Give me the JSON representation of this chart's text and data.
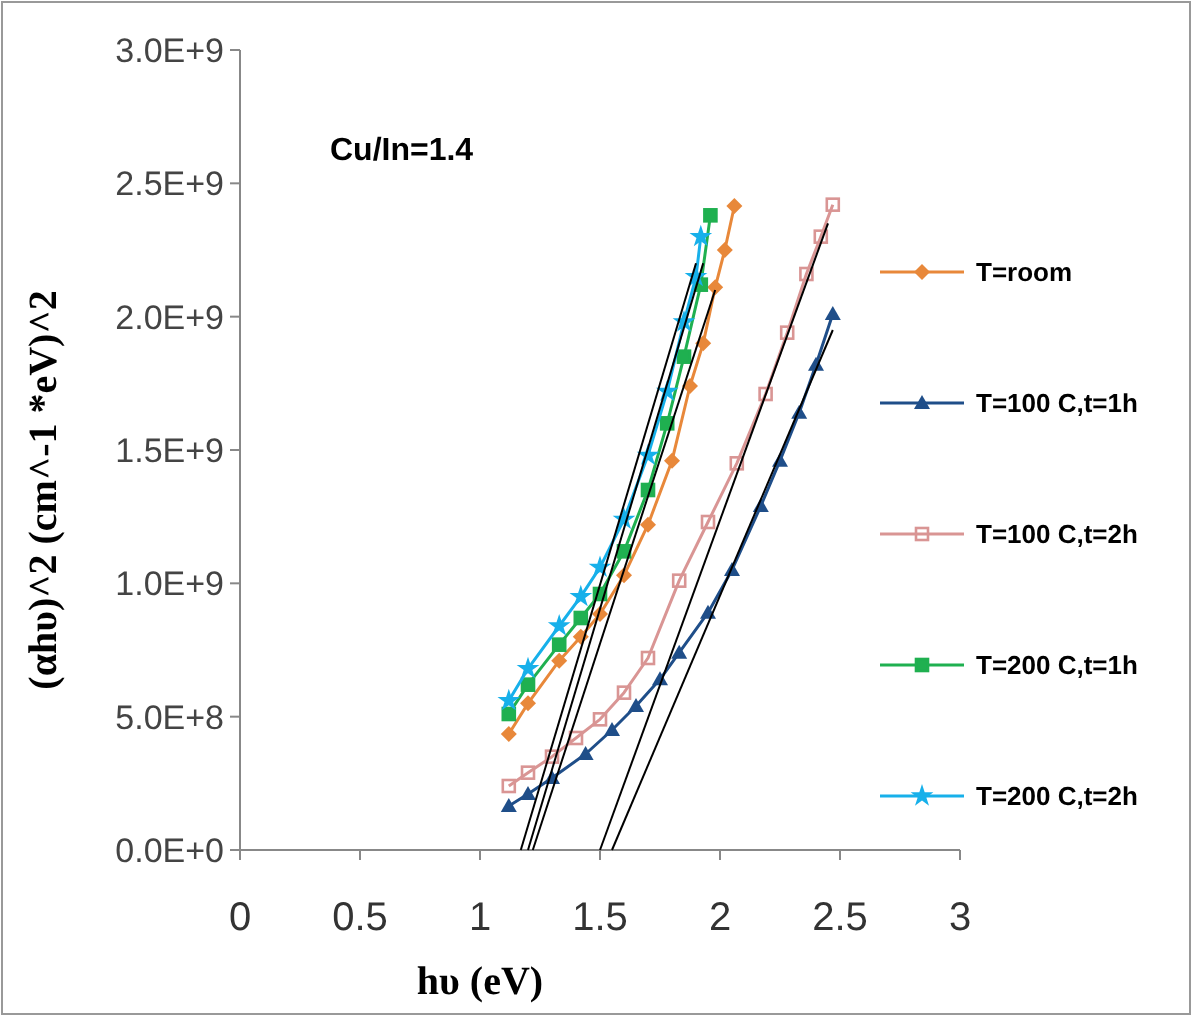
{
  "chart_data": {
    "type": "line",
    "xlabel": "hυ (eV)",
    "ylabel": "(αhυ)^2 (cm^-1 *eV)^2",
    "annotations": [
      "Cu/In=1.4"
    ],
    "xlim": [
      0,
      3
    ],
    "xticks": [
      0,
      0.5,
      1,
      1.5,
      2,
      2.5,
      3
    ],
    "ylim": [
      0,
      3000000000
    ],
    "yticks": [
      {
        "value": 0,
        "label": "0.0E+0"
      },
      {
        "value": 500000000,
        "label": "5.0E+8"
      },
      {
        "value": 1000000000,
        "label": "1.0E+9"
      },
      {
        "value": 1500000000,
        "label": "1.5E+9"
      },
      {
        "value": 2000000000,
        "label": "2.0E+9"
      },
      {
        "value": 2500000000,
        "label": "2.5E+9"
      },
      {
        "value": 3000000000,
        "label": "3.0E+9"
      }
    ],
    "grid": false,
    "legend": "right",
    "series": [
      {
        "name": "T=room",
        "color": "#e8883a",
        "marker": "diamond",
        "x": [
          1.12,
          1.2,
          1.33,
          1.42,
          1.5,
          1.6,
          1.7,
          1.8,
          1.875,
          1.93,
          1.98,
          2.02,
          2.06
        ],
        "values": [
          435000000,
          550000000,
          710000000,
          800000000,
          885000000,
          1030000000,
          1220000000,
          1460000000,
          1740000000,
          1900000000,
          2110000000,
          2250000000,
          2415000000
        ]
      },
      {
        "name": "T=100 C,t=1h",
        "color": "#1f4e89",
        "marker": "triangle",
        "x": [
          1.12,
          1.2,
          1.3,
          1.44,
          1.55,
          1.65,
          1.75,
          1.83,
          1.95,
          2.05,
          2.17,
          2.25,
          2.33,
          2.4,
          2.47
        ],
        "values": [
          165000000,
          210000000,
          270000000,
          360000000,
          450000000,
          540000000,
          640000000,
          740000000,
          890000000,
          1050000000,
          1290000000,
          1460000000,
          1640000000,
          1820000000,
          2010000000
        ]
      },
      {
        "name": "T=100 C,t=2h",
        "color": "#d99594",
        "marker": "square",
        "x": [
          1.12,
          1.2,
          1.3,
          1.4,
          1.5,
          1.6,
          1.7,
          1.83,
          1.95,
          2.07,
          2.19,
          2.28,
          2.36,
          2.42,
          2.47
        ],
        "values": [
          240000000,
          290000000,
          350000000,
          420000000,
          490000000,
          590000000,
          720000000,
          1010000000,
          1230000000,
          1450000000,
          1710000000,
          1940000000,
          2160000000,
          2300000000,
          2420000000
        ]
      },
      {
        "name": "T=200 C,t=1h",
        "color": "#1fb050",
        "marker": "square",
        "x": [
          1.12,
          1.2,
          1.33,
          1.42,
          1.5,
          1.6,
          1.7,
          1.78,
          1.85,
          1.92,
          1.96
        ],
        "values": [
          510000000,
          620000000,
          770000000,
          870000000,
          960000000,
          1120000000,
          1350000000,
          1600000000,
          1850000000,
          2120000000,
          2380000000
        ]
      },
      {
        "name": "T=200 C,t=2h",
        "color": "#17b0ea",
        "marker": "star",
        "x": [
          1.12,
          1.2,
          1.33,
          1.42,
          1.5,
          1.6,
          1.7,
          1.78,
          1.85,
          1.9,
          1.92
        ],
        "values": [
          560000000,
          680000000,
          840000000,
          950000000,
          1060000000,
          1240000000,
          1480000000,
          1720000000,
          1980000000,
          2150000000,
          2300000000
        ]
      },
      {
        "type": "line",
        "color": "#000000",
        "marker": "none",
        "x": [
          1.22,
          1.98
        ],
        "values": [
          0,
          2100000000
        ]
      },
      {
        "type": "line",
        "color": "#000000",
        "marker": "none",
        "x": [
          1.17,
          1.9
        ],
        "values": [
          0,
          2200000000
        ]
      },
      {
        "type": "line",
        "color": "#000000",
        "marker": "none",
        "x": [
          1.2,
          1.93
        ],
        "values": [
          0,
          2200000000
        ]
      },
      {
        "type": "line",
        "color": "#000000",
        "marker": "none",
        "x": [
          1.5,
          2.45
        ],
        "values": [
          0,
          2350000000
        ]
      },
      {
        "type": "line",
        "color": "#000000",
        "marker": "none",
        "x": [
          1.55,
          2.47
        ],
        "values": [
          0,
          1950000000
        ]
      }
    ]
  }
}
